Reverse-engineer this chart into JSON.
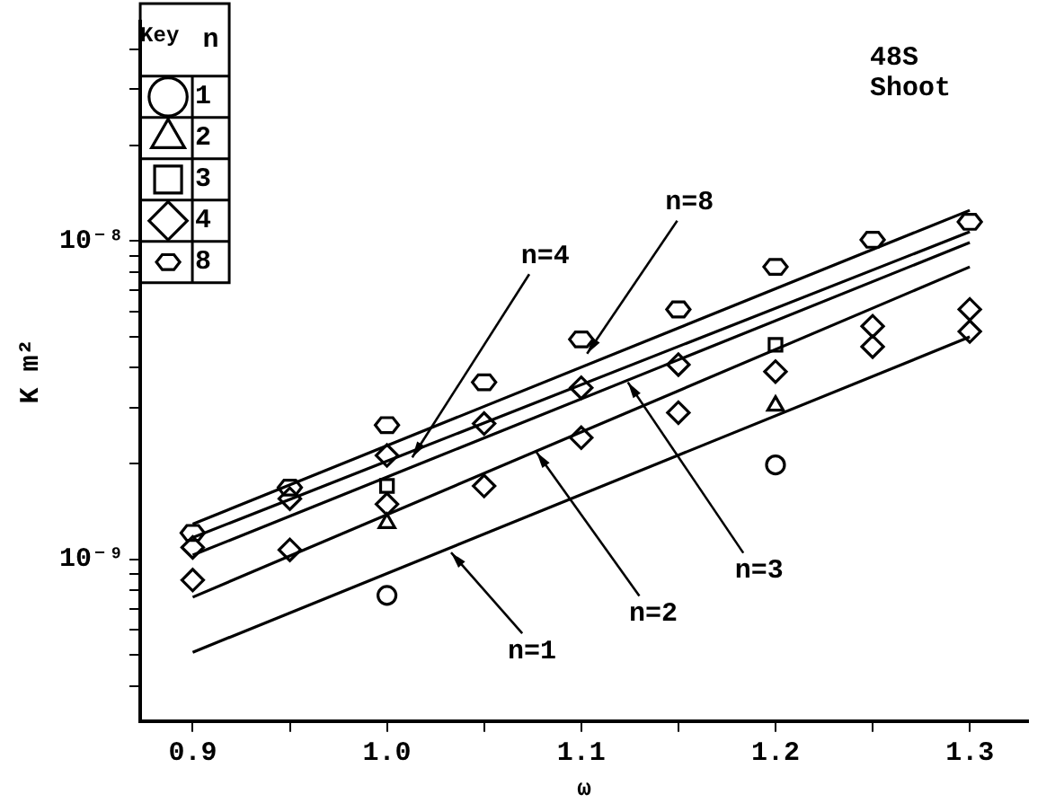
{
  "chart_data": {
    "type": "scatter",
    "xlabel": "ω",
    "ylabel": "K m²",
    "legend_title": "Key",
    "legend": "top left",
    "log": "y",
    "xlim": [
      0.873,
      1.33
    ],
    "xticks": [
      {
        "value": 0.9,
        "label": "0.9"
      },
      {
        "value": 0.95,
        "label": null
      },
      {
        "value": 1.0,
        "label": "1.0"
      },
      {
        "value": 1.05,
        "label": null
      },
      {
        "value": 1.1,
        "label": "1.1"
      },
      {
        "value": 1.15,
        "label": null
      },
      {
        "value": 1.2,
        "label": "1.2"
      },
      {
        "value": 1.25,
        "label": null
      },
      {
        "value": 1.3,
        "label": "1.3"
      }
    ],
    "ylim": [
      3.1e-10,
      4.9e-08
    ],
    "yticks": [
      {
        "value": 4e-10,
        "label": null
      },
      {
        "value": 5e-10,
        "label": null
      },
      {
        "value": 6e-10,
        "label": null
      },
      {
        "value": 7e-10,
        "label": null
      },
      {
        "value": 8e-10,
        "label": null
      },
      {
        "value": 9e-10,
        "label": null
      },
      {
        "value": 1e-09,
        "label": "10⁻⁹"
      },
      {
        "value": 2e-09,
        "label": null
      },
      {
        "value": 3e-09,
        "label": null
      },
      {
        "value": 4e-09,
        "label": null
      },
      {
        "value": 5e-09,
        "label": null
      },
      {
        "value": 6e-09,
        "label": null
      },
      {
        "value": 7e-09,
        "label": null
      },
      {
        "value": 8e-09,
        "label": null
      },
      {
        "value": 9e-09,
        "label": null
      },
      {
        "value": 1e-08,
        "label": "10⁻⁸"
      },
      {
        "value": 2e-08,
        "label": null
      },
      {
        "value": 3e-08,
        "label": null
      },
      {
        "value": 4e-08,
        "label": null
      }
    ],
    "annotations": [
      "n",
      "48S",
      "Shoot",
      {
        "text": "n=1",
        "x": 1.033,
        "y": 1.05e-09
      },
      {
        "text": "n=2",
        "x": 1.077,
        "y": 2.17e-09
      },
      {
        "text": "n=3",
        "x": 1.124,
        "y": 3.6e-09
      },
      {
        "text": "n=4",
        "x": 1.013,
        "y": 2.09e-09
      },
      {
        "text": "n=8",
        "x": 1.103,
        "y": 4.43e-09
      }
    ],
    "series": [
      {
        "type": "line",
        "x": [
          0.9,
          1.3
        ],
        "values": [
          5.1e-10,
          5e-09
        ],
        "color": "#000000"
      },
      {
        "type": "line",
        "x": [
          0.9,
          1.3
        ],
        "values": [
          7.6e-10,
          8.3e-09
        ],
        "color": "#000000"
      },
      {
        "type": "line",
        "x": [
          0.9,
          1.3
        ],
        "values": [
          1.03e-09,
          9.9e-09
        ],
        "color": "#000000"
      },
      {
        "type": "line",
        "x": [
          0.9,
          1.3
        ],
        "values": [
          1.17e-09,
          1.07e-08
        ],
        "color": "#000000"
      },
      {
        "type": "line",
        "x": [
          0.9,
          1.3
        ],
        "values": [
          1.29e-09,
          1.25e-08
        ],
        "color": "#000000"
      },
      {
        "name": "1",
        "marker": "circle",
        "color": "#000000",
        "x": [
          1.0,
          1.2
        ],
        "values": [
          7.7e-10,
          1.98e-09
        ]
      },
      {
        "name": "2",
        "marker": "triangle",
        "color": "#000000",
        "x": [
          1.0,
          1.2
        ],
        "values": [
          1.3e-09,
          3.04e-09
        ]
      },
      {
        "name": "3",
        "marker": "square",
        "color": "#000000",
        "x": [
          1.0,
          1.2
        ],
        "values": [
          1.7e-09,
          4.72e-09
        ]
      },
      {
        "name": "4",
        "marker": "diamond",
        "color": "#000000",
        "x": [
          0.9,
          0.9,
          0.95,
          0.95,
          1.0,
          1.0,
          1.05,
          1.05,
          1.1,
          1.1,
          1.15,
          1.15,
          1.2,
          1.25,
          1.25,
          1.3,
          1.3
        ],
        "values": [
          1.09e-09,
          8.6e-10,
          1.55e-09,
          1.07e-09,
          2.12e-09,
          1.49e-09,
          2.67e-09,
          1.7e-09,
          3.46e-09,
          2.41e-09,
          4.09e-09,
          2.89e-09,
          3.89e-09,
          5.4e-09,
          4.66e-09,
          6.1e-09,
          5.2e-09
        ]
      },
      {
        "name": "8",
        "color": "#000000",
        "x": [
          0.9,
          0.95,
          1.0,
          1.05,
          1.1,
          1.15,
          1.2,
          1.25,
          1.3
        ],
        "values": [
          1.21e-09,
          1.68e-09,
          2.64e-09,
          3.6e-09,
          4.91e-09,
          6.1e-09,
          8.3e-09,
          1.01e-08,
          1.15e-08
        ]
      }
    ]
  }
}
